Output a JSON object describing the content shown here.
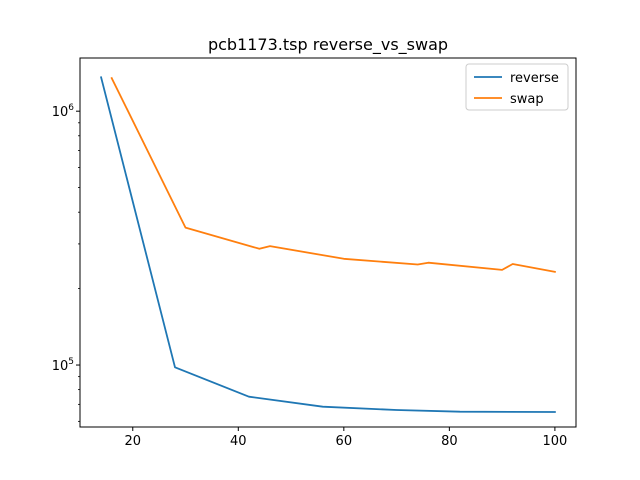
{
  "chart_data": {
    "type": "line",
    "title": "pcb1173.tsp  reverse_vs_swap",
    "xlabel": "",
    "ylabel": "",
    "xlim": [
      10,
      104
    ],
    "ylim": [
      57000,
      1620000
    ],
    "yscale": "log",
    "x_ticks": [
      20,
      40,
      60,
      80,
      100
    ],
    "x_tick_labels": [
      "20",
      "40",
      "60",
      "80",
      "100"
    ],
    "y_ticks": [
      {
        "value": 100000,
        "base": "10",
        "exp": "5"
      },
      {
        "value": 1000000,
        "base": "10",
        "exp": "6"
      }
    ],
    "grid": false,
    "legend_position": "top-right",
    "series": [
      {
        "name": "reverse",
        "color": "#1f77b4",
        "x": [
          14,
          28,
          42,
          56,
          70,
          82,
          100
        ],
        "y": [
          1360000,
          98000,
          75000,
          68500,
          66500,
          65500,
          65300
        ]
      },
      {
        "name": "swap",
        "color": "#ff7f0e",
        "x": [
          16,
          30,
          44,
          46,
          60,
          74,
          76,
          90,
          92,
          100
        ],
        "y": [
          1350000,
          348000,
          287000,
          294000,
          262000,
          249000,
          253000,
          237000,
          250000,
          233000
        ]
      }
    ]
  }
}
